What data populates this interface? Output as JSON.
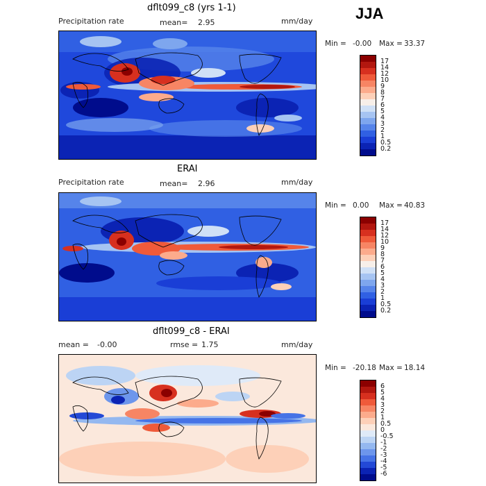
{
  "season": "JJA",
  "panels": [
    {
      "title": "dflt099_c8 (yrs 1-1)",
      "left_label": "Precipitation rate",
      "center_label": "mean=",
      "center_value": "2.95",
      "units": "mm/day",
      "min_label": "Min =",
      "min_value": "-0.00",
      "max_label": "Max =",
      "max_value": "33.37",
      "levels": [
        "17",
        "14",
        "12",
        "10",
        "9",
        "8",
        "7",
        "6",
        "5",
        "4",
        "3",
        "2",
        "1",
        "0.5",
        "0.2"
      ],
      "colors": [
        "#8b0000",
        "#b2170f",
        "#d7301f",
        "#ef5a3a",
        "#f78564",
        "#fcab8c",
        "#fdd0b8",
        "#f7efe9",
        "#cfe0f6",
        "#a6c4f2",
        "#7ea6ee",
        "#5684ea",
        "#3060e3",
        "#1a3ed6",
        "#0b23b4",
        "#000c8c"
      ]
    },
    {
      "title": "ERAI",
      "left_label": "Precipitation rate",
      "center_label": "mean=",
      "center_value": "2.96",
      "units": "mm/day",
      "min_label": "Min =",
      "min_value": "0.00",
      "max_label": "Max =",
      "max_value": "40.83",
      "levels": [
        "17",
        "14",
        "12",
        "10",
        "9",
        "8",
        "7",
        "6",
        "5",
        "4",
        "3",
        "2",
        "1",
        "0.5",
        "0.2"
      ],
      "colors": [
        "#8b0000",
        "#b2170f",
        "#d7301f",
        "#ef5a3a",
        "#f78564",
        "#fcab8c",
        "#fdd0b8",
        "#f7efe9",
        "#cfe0f6",
        "#a6c4f2",
        "#7ea6ee",
        "#5684ea",
        "#3060e3",
        "#1a3ed6",
        "#0b23b4",
        "#000c8c"
      ]
    },
    {
      "title": "dflt099_c8 - ERAI",
      "left_label": "mean =",
      "left_value": "-0.00",
      "center_label": "rmse =",
      "center_value": "1.75",
      "units": "mm/day",
      "min_label": "Min =",
      "min_value": "-20.18",
      "max_label": "Max =",
      "max_value": "18.14",
      "levels": [
        "6",
        "5",
        "4",
        "3",
        "2",
        "1",
        "0.5",
        "0",
        "-0.5",
        "-1",
        "-2",
        "-3",
        "-4",
        "-5",
        "-6"
      ],
      "colors": [
        "#8b0000",
        "#b2170f",
        "#d7301f",
        "#ef5a3a",
        "#f78564",
        "#fcab8c",
        "#fdd0b8",
        "#fbe8dc",
        "#dfeaf8",
        "#bcd4f4",
        "#94b8f0",
        "#6d96ec",
        "#4673e6",
        "#2349d6",
        "#0b23b4",
        "#000c8c"
      ]
    }
  ]
}
